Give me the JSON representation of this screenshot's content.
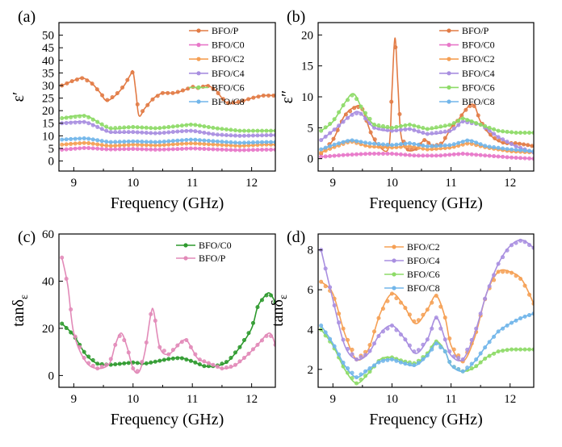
{
  "chart_data": [
    {
      "panel": "(a)",
      "type": "line",
      "xlabel": "Frequency (GHz)",
      "ylabel": "ε′",
      "xlim": [
        8.75,
        12.4
      ],
      "ylim": [
        -4,
        55
      ],
      "xticks": [
        9,
        10,
        11,
        12
      ],
      "yticks": [
        0,
        5,
        10,
        15,
        20,
        25,
        30,
        35,
        40,
        45,
        50
      ],
      "legend_position": "top-right",
      "series": [
        {
          "name": "BFO/P",
          "color": "#e27b45",
          "x": [
            8.8,
            9.0,
            9.15,
            9.3,
            9.45,
            9.55,
            9.7,
            9.85,
            9.95,
            10.0,
            10.05,
            10.1,
            10.2,
            10.35,
            10.5,
            10.7,
            10.9,
            11.0,
            11.1,
            11.25,
            11.4,
            11.5,
            11.6,
            11.8,
            12.0,
            12.2,
            12.4
          ],
          "y": [
            30,
            32,
            33,
            31,
            27,
            24,
            26,
            30,
            34,
            35.5,
            27,
            18,
            21,
            25,
            27,
            27,
            28.5,
            29.5,
            29,
            30,
            28,
            25,
            23,
            23.5,
            25,
            26,
            26
          ]
        },
        {
          "name": "BFO/C0",
          "color": "#e878c9",
          "x": [
            8.8,
            9.2,
            9.6,
            10.0,
            10.4,
            10.8,
            11.0,
            11.4,
            11.8,
            12.2,
            12.4
          ],
          "y": [
            4.5,
            5.2,
            4.6,
            4.8,
            4.5,
            4.8,
            5.0,
            4.6,
            4.3,
            4.5,
            4.5
          ]
        },
        {
          "name": "BFO/C2",
          "color": "#f5a055",
          "x": [
            8.8,
            9.2,
            9.6,
            10.0,
            10.4,
            10.8,
            11.0,
            11.4,
            11.8,
            12.2,
            12.4
          ],
          "y": [
            6.5,
            7.2,
            6.0,
            6.5,
            6.2,
            6.8,
            7.0,
            6.5,
            6.0,
            6.5,
            6.5
          ]
        },
        {
          "name": "BFO/C4",
          "color": "#a98fe0",
          "x": [
            8.8,
            9.2,
            9.6,
            10.0,
            10.4,
            10.8,
            11.0,
            11.4,
            11.8,
            12.2,
            12.4
          ],
          "y": [
            15.0,
            15.5,
            11.5,
            11.5,
            11.0,
            11.8,
            12.0,
            10.5,
            10.0,
            10.2,
            10.3
          ]
        },
        {
          "name": "BFO/C6",
          "color": "#8edb68",
          "x": [
            8.8,
            9.2,
            9.6,
            10.0,
            10.4,
            10.8,
            11.0,
            11.4,
            11.8,
            12.2,
            12.4
          ],
          "y": [
            17.0,
            18.0,
            13.0,
            13.5,
            13.0,
            14.0,
            14.5,
            13.0,
            12.0,
            12.0,
            12.0
          ]
        },
        {
          "name": "BFO/C8",
          "color": "#72b6ea",
          "x": [
            8.8,
            9.2,
            9.6,
            10.0,
            10.4,
            10.8,
            11.0,
            11.4,
            11.8,
            12.2,
            12.4
          ],
          "y": [
            8.5,
            9.0,
            7.5,
            7.8,
            7.5,
            8.2,
            8.5,
            7.8,
            7.2,
            7.5,
            7.5
          ]
        }
      ]
    },
    {
      "panel": "(b)",
      "type": "line",
      "xlabel": "Frequency (GHz)",
      "ylabel": "ε″",
      "xlim": [
        8.75,
        12.4
      ],
      "ylim": [
        -2,
        22
      ],
      "xticks": [
        9,
        10,
        11,
        12
      ],
      "yticks": [
        0,
        5,
        10,
        15,
        20
      ],
      "legend_position": "top-right",
      "series": [
        {
          "name": "BFO/P",
          "color": "#e27b45",
          "x": [
            8.8,
            9.0,
            9.2,
            9.4,
            9.5,
            9.65,
            9.8,
            9.95,
            10.0,
            10.05,
            10.1,
            10.15,
            10.25,
            10.4,
            10.55,
            10.7,
            10.85,
            11.0,
            11.1,
            11.3,
            11.4,
            11.5,
            11.7,
            11.9,
            12.1,
            12.3,
            12.4
          ],
          "y": [
            0.8,
            3,
            7,
            8.5,
            8,
            4,
            1.8,
            2,
            11,
            19.5,
            12,
            4,
            1.5,
            1.5,
            3,
            2,
            2.5,
            5,
            6,
            8.5,
            8.5,
            6,
            3.5,
            2.5,
            2.5,
            2.2,
            2
          ]
        },
        {
          "name": "BFO/C0",
          "color": "#e878c9",
          "x": [
            8.8,
            9.2,
            9.6,
            10.0,
            10.4,
            10.8,
            11.2,
            11.6,
            12.0,
            12.4
          ],
          "y": [
            0.3,
            0.6,
            0.8,
            0.8,
            0.5,
            0.5,
            0.8,
            0.5,
            0.2,
            0.0
          ]
        },
        {
          "name": "BFO/C2",
          "color": "#f5a055",
          "x": [
            8.8,
            9.0,
            9.3,
            9.6,
            10.0,
            10.3,
            10.6,
            11.0,
            11.3,
            11.6,
            12.0,
            12.4
          ],
          "y": [
            1.0,
            1.8,
            2.8,
            2.0,
            1.8,
            2.0,
            1.5,
            1.8,
            2.5,
            1.8,
            1.2,
            1.0
          ]
        },
        {
          "name": "BFO/C4",
          "color": "#a98fe0",
          "x": [
            8.8,
            9.0,
            9.3,
            9.45,
            9.7,
            10.0,
            10.3,
            10.6,
            11.0,
            11.2,
            11.5,
            11.8,
            12.1,
            12.4
          ],
          "y": [
            3.0,
            4.5,
            7.0,
            7.5,
            5.0,
            4.5,
            4.8,
            4.0,
            4.5,
            6.0,
            5.5,
            3.5,
            2.0,
            1.0
          ]
        },
        {
          "name": "BFO/C6",
          "color": "#8edb68",
          "x": [
            8.8,
            9.0,
            9.2,
            9.35,
            9.5,
            9.7,
            10.0,
            10.3,
            10.6,
            11.0,
            11.2,
            11.5,
            11.8,
            12.1,
            12.4
          ],
          "y": [
            4.5,
            6.0,
            9.0,
            10.5,
            8.0,
            5.5,
            5.0,
            5.5,
            4.8,
            5.5,
            6.5,
            5.5,
            4.5,
            4.2,
            4.2
          ]
        },
        {
          "name": "BFO/C8",
          "color": "#72b6ea",
          "x": [
            8.8,
            9.0,
            9.3,
            9.6,
            10.0,
            10.3,
            10.6,
            11.0,
            11.3,
            11.6,
            12.0,
            12.4
          ],
          "y": [
            1.5,
            2.2,
            3.0,
            2.5,
            2.2,
            2.5,
            2.0,
            2.2,
            3.0,
            2.0,
            1.5,
            1.2
          ]
        }
      ]
    },
    {
      "panel": "(c)",
      "type": "line",
      "xlabel": "Frequency (GHz)",
      "ylabel": "tanδε",
      "xlim": [
        8.75,
        12.4
      ],
      "ylim": [
        -5,
        60
      ],
      "xticks": [
        9,
        10,
        11,
        12
      ],
      "yticks": [
        0,
        20,
        40,
        60
      ],
      "legend_position": "top-right",
      "series": [
        {
          "name": "BFO/C0",
          "color": "#2e9a2e",
          "x": [
            8.8,
            9.0,
            9.2,
            9.4,
            9.6,
            9.8,
            10.0,
            10.2,
            10.4,
            10.6,
            10.8,
            11.0,
            11.2,
            11.4,
            11.6,
            11.8,
            12.0,
            12.1,
            12.2,
            12.3,
            12.4
          ],
          "y": [
            22,
            17,
            9,
            5,
            4.5,
            5,
            5.5,
            5,
            6,
            7,
            7.5,
            6,
            4,
            4,
            6,
            12,
            20,
            29,
            33,
            35,
            31
          ]
        },
        {
          "name": "BFO/P",
          "color": "#e28ab8",
          "x": [
            8.8,
            8.9,
            9.0,
            9.2,
            9.4,
            9.6,
            9.7,
            9.8,
            9.9,
            10.0,
            10.1,
            10.2,
            10.3,
            10.35,
            10.45,
            10.6,
            10.8,
            10.9,
            11.0,
            11.1,
            11.3,
            11.5,
            11.7,
            11.9,
            12.1,
            12.3,
            12.4
          ],
          "y": [
            50,
            38,
            18,
            6,
            3,
            5,
            13,
            18,
            12,
            3,
            1.5,
            10,
            26,
            27,
            12,
            9,
            14,
            15,
            11,
            7,
            5,
            3,
            4,
            8,
            13,
            18,
            13
          ]
        }
      ]
    },
    {
      "panel": "(d)",
      "type": "line",
      "xlabel": "Frequency (GHz)",
      "ylabel": "tanδε",
      "xlim": [
        8.75,
        12.4
      ],
      "ylim": [
        1.1,
        8.8
      ],
      "xticks": [
        9,
        10,
        11,
        12
      ],
      "yticks": [
        2,
        4,
        6,
        8
      ],
      "legend_position": "top",
      "series": [
        {
          "name": "BFO/C2",
          "color": "#f5a055",
          "x": [
            8.8,
            9.0,
            9.2,
            9.4,
            9.6,
            9.8,
            10.0,
            10.2,
            10.4,
            10.6,
            10.75,
            10.9,
            11.0,
            11.2,
            11.4,
            11.6,
            11.8,
            12.0,
            12.2,
            12.4
          ],
          "y": [
            6.4,
            5.8,
            3.8,
            2.5,
            3.0,
            4.8,
            5.8,
            5.2,
            4.3,
            5.0,
            5.7,
            4.6,
            3.2,
            2.4,
            3.6,
            5.8,
            6.9,
            6.9,
            6.5,
            5.3
          ]
        },
        {
          "name": "BFO/C4",
          "color": "#a98fe0",
          "x": [
            8.8,
            9.0,
            9.2,
            9.4,
            9.6,
            9.8,
            10.0,
            10.2,
            10.4,
            10.6,
            10.75,
            10.9,
            11.0,
            11.2,
            11.4,
            11.6,
            11.8,
            12.0,
            12.2,
            12.4
          ],
          "y": [
            8.0,
            5.5,
            3.2,
            2.5,
            2.8,
            3.8,
            4.2,
            3.6,
            2.8,
            3.5,
            4.6,
            3.5,
            2.7,
            2.5,
            3.8,
            5.8,
            7.3,
            8.2,
            8.5,
            8.1
          ]
        },
        {
          "name": "BFO/C6",
          "color": "#8edb68",
          "x": [
            8.8,
            9.0,
            9.2,
            9.4,
            9.6,
            9.8,
            10.0,
            10.2,
            10.4,
            10.6,
            10.75,
            10.9,
            11.0,
            11.2,
            11.4,
            11.6,
            11.8,
            12.0,
            12.2,
            12.4
          ],
          "y": [
            4.0,
            3.2,
            2.0,
            1.3,
            1.8,
            2.5,
            2.6,
            2.4,
            2.3,
            2.8,
            3.4,
            2.9,
            2.2,
            1.9,
            2.1,
            2.6,
            2.9,
            3.0,
            3.0,
            3.0
          ]
        },
        {
          "name": "BFO/C8",
          "color": "#72b6ea",
          "x": [
            8.8,
            9.0,
            9.2,
            9.4,
            9.6,
            9.8,
            10.0,
            10.2,
            10.4,
            10.6,
            10.75,
            10.9,
            11.0,
            11.2,
            11.4,
            11.6,
            11.8,
            12.0,
            12.2,
            12.4
          ],
          "y": [
            4.2,
            3.3,
            2.2,
            1.6,
            2.0,
            2.4,
            2.5,
            2.3,
            2.2,
            2.7,
            3.3,
            2.9,
            2.2,
            1.9,
            2.4,
            3.2,
            3.9,
            4.3,
            4.6,
            4.8
          ]
        }
      ]
    }
  ]
}
